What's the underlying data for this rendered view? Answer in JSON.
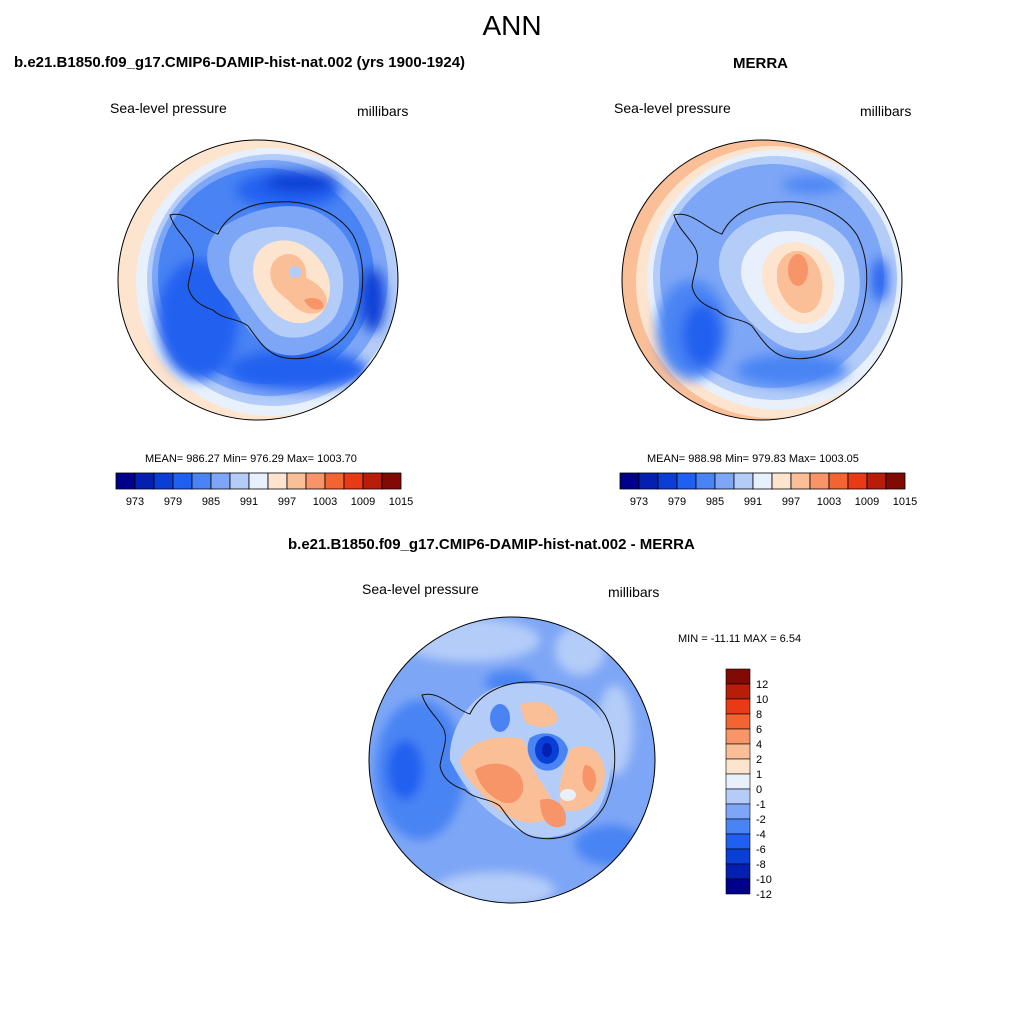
{
  "main_title": "ANN",
  "panels": [
    {
      "title": "b.e21.B1850.f09_g17.CMIP6-DAMIP-hist-nat.002 (yrs 1900-1924)",
      "variable": "Sea-level pressure",
      "units": "millibars",
      "stats": "MEAN= 986.27  Min= 976.29  Max= 1003.70"
    },
    {
      "title": "MERRA",
      "variable": "Sea-level pressure",
      "units": "millibars",
      "stats": "MEAN= 988.98  Min= 979.83  Max= 1003.05"
    },
    {
      "title": "b.e21.B1850.f09_g17.CMIP6-DAMIP-hist-nat.002 - MERRA",
      "variable": "Sea-level pressure",
      "units": "millibars",
      "stats": "MIN = -11.11 MAX =   6.54"
    }
  ],
  "colorbar_abs": {
    "colors": [
      "#00008b",
      "#0320b0",
      "#0a3fd6",
      "#2060f0",
      "#4a84f4",
      "#7ea6f6",
      "#b4ccf8",
      "#e8f0fb",
      "#fde4cf",
      "#fbbf98",
      "#f79468",
      "#f26533",
      "#e83a14",
      "#b81d0a",
      "#820a05"
    ],
    "labels": [
      "973",
      "979",
      "985",
      "991",
      "997",
      "1003",
      "1009",
      "1015"
    ]
  },
  "colorbar_diff": {
    "colors": [
      "#00008b",
      "#0320b0",
      "#0a3fd6",
      "#2060f0",
      "#4a84f4",
      "#7ea6f6",
      "#b4ccf8",
      "#e8f0fb",
      "#fde4cf",
      "#fbbf98",
      "#f79468",
      "#f26533",
      "#e83a14",
      "#b81d0a",
      "#820a05"
    ],
    "labels": [
      "12",
      "10",
      "8",
      "6",
      "4",
      "2",
      "1",
      "0",
      "-1",
      "-2",
      "-4",
      "-6",
      "-8",
      "-10",
      "-12"
    ]
  }
}
